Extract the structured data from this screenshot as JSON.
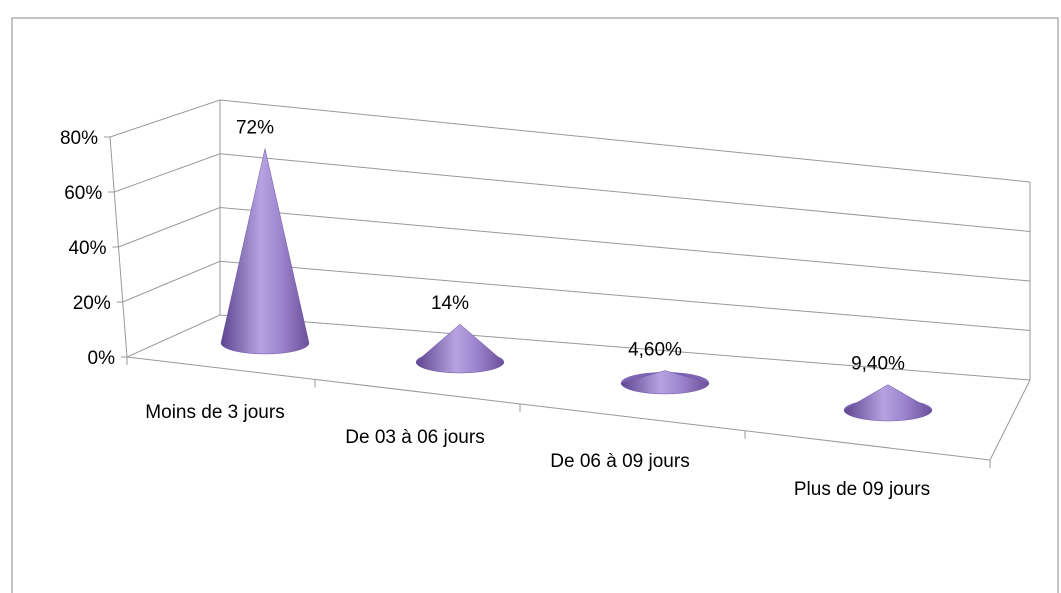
{
  "chart_data": {
    "type": "cone3d",
    "categories": [
      "Moins de 3 jours",
      "De 03 à 06 jours",
      "De 06 à 09 jours",
      "Plus de 09 jours"
    ],
    "values": [
      72,
      14,
      4.6,
      9.4
    ],
    "value_labels": [
      "72%",
      "14%",
      "4,60%",
      "9,40%"
    ],
    "color": "#8e78c4",
    "ylim": [
      0,
      80
    ],
    "yticks": [
      {
        "value": 0,
        "label": "0%"
      },
      {
        "value": 20,
        "label": "20%"
      },
      {
        "value": 40,
        "label": "40%"
      },
      {
        "value": 60,
        "label": "60%"
      },
      {
        "value": 80,
        "label": "80%"
      }
    ],
    "grid": true
  }
}
